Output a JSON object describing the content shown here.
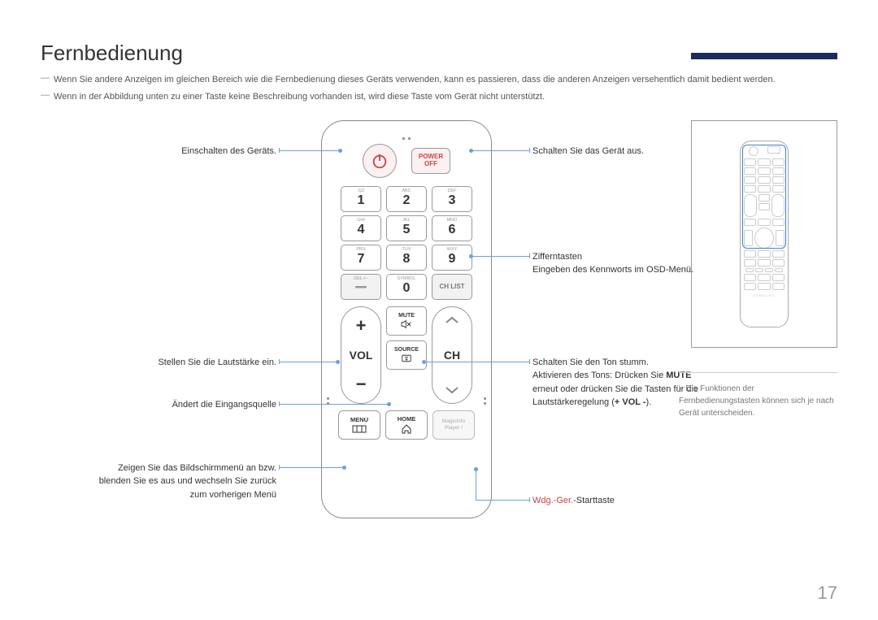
{
  "page": {
    "title": "Fernbedienung",
    "note1": "Wenn Sie andere Anzeigen im gleichen Bereich wie die Fernbedienung dieses Geräts verwenden, kann es passieren, dass die anderen Anzeigen versehentlich damit bedient werden.",
    "note2": "Wenn in der Abbildung unten zu einer Taste keine Beschreibung vorhanden ist, wird diese Taste vom Gerät nicht unterstützt.",
    "page_number": "17"
  },
  "remote": {
    "power_off_label": "POWER\nOFF",
    "numpad": [
      {
        "sub": ".QZ",
        "num": "1"
      },
      {
        "sub": "ABC",
        "num": "2"
      },
      {
        "sub": "DEF",
        "num": "3"
      },
      {
        "sub": "GHI",
        "num": "4"
      },
      {
        "sub": "JKL",
        "num": "5"
      },
      {
        "sub": "MNO",
        "num": "6"
      },
      {
        "sub": "PRS",
        "num": "7"
      },
      {
        "sub": "TUV",
        "num": "8"
      },
      {
        "sub": "WXY",
        "num": "9"
      }
    ],
    "del_label": "DEL-/--",
    "zero_sub": "SYMBOL",
    "zero_num": "0",
    "chlist_label": "CH LIST",
    "vol_label": "VOL",
    "ch_label": "CH",
    "mute_label": "MUTE",
    "source_label": "SOURCE",
    "menu_label": "MENU",
    "home_label": "HOME",
    "magic_label1": "MagicInfo",
    "magic_label2": "Player I"
  },
  "callouts": {
    "left1": "Einschalten des Geräts.",
    "left2": "Stellen Sie die Lautstärke ein.",
    "left3": "Ändert die Eingangsquelle",
    "left4_l1": "Zeigen Sie das Bildschirmmenü an bzw.",
    "left4_l2": "blenden Sie es aus und wechseln Sie zurück",
    "left4_l3": "zum vorherigen Menü",
    "right1": "Schalten Sie das Gerät aus.",
    "right2_l1": "Zifferntasten",
    "right2_l2": "Eingeben des Kennworts im OSD-Menü.",
    "right3_l1": "Schalten Sie den Ton stumm.",
    "right3_l2_a": "Aktivieren des Tons: Drücken Sie ",
    "right3_l2_b": "MUTE",
    "right3_l2_c": " erneut oder drücken Sie die Tasten für die Lautstärkeregelung (",
    "right3_l2_d": "+ VOL -",
    "right3_l2_e": ").",
    "right4_a": "Wdg.-Ger.",
    "right4_b": "-Starttaste"
  },
  "sidenote": "Die Funktionen der Fernbedienungstasten können sich je nach Gerät unterscheiden.",
  "colors": {
    "leader": "#6aa0e0",
    "accent_pink": "#fdf0f0",
    "highlight_border": "#4080d0",
    "red_text": "#d04040"
  }
}
